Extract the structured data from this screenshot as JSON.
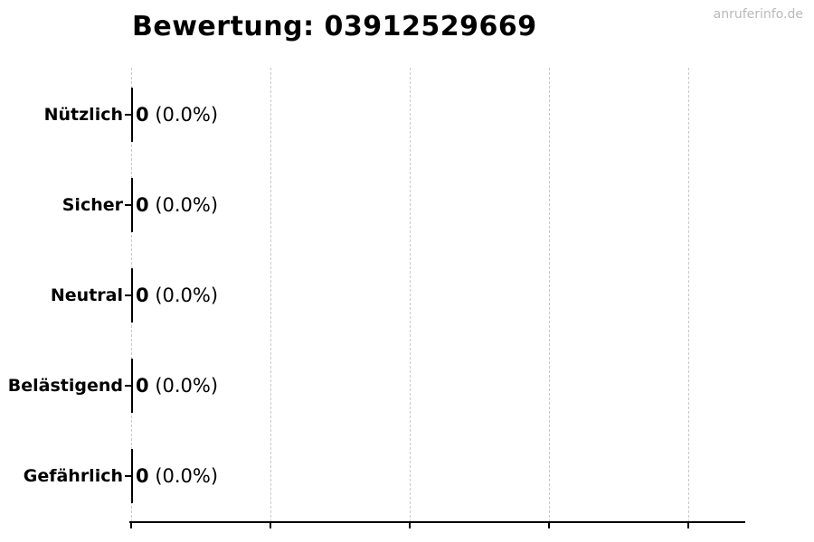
{
  "watermark": "anruferinfo.de",
  "chart_data": {
    "type": "bar",
    "orientation": "horizontal",
    "title": "Bewertung: 03912529669",
    "categories": [
      "Nützlich",
      "Sicher",
      "Neutral",
      "Belästigend",
      "Gefährlich"
    ],
    "values": [
      0,
      0,
      0,
      0,
      0
    ],
    "percentages": [
      0.0,
      0.0,
      0.0,
      0.0,
      0.0
    ],
    "value_labels": [
      {
        "count": "0",
        "pct": "(0.0%)"
      },
      {
        "count": "0",
        "pct": "(0.0%)"
      },
      {
        "count": "0",
        "pct": "(0.0%)"
      },
      {
        "count": "0",
        "pct": "(0.0%)"
      },
      {
        "count": "0",
        "pct": "(0.0%)"
      }
    ],
    "x_axis": {
      "tick_labels_visible": false,
      "gridline_count": 5
    },
    "legend": "none",
    "grid": "vertical-dashed",
    "colors": {
      "background": "#ffffff",
      "text": "#000000",
      "axis": "#000000",
      "gridline": "#c9c9c9",
      "watermark": "#b9b9b9"
    }
  }
}
